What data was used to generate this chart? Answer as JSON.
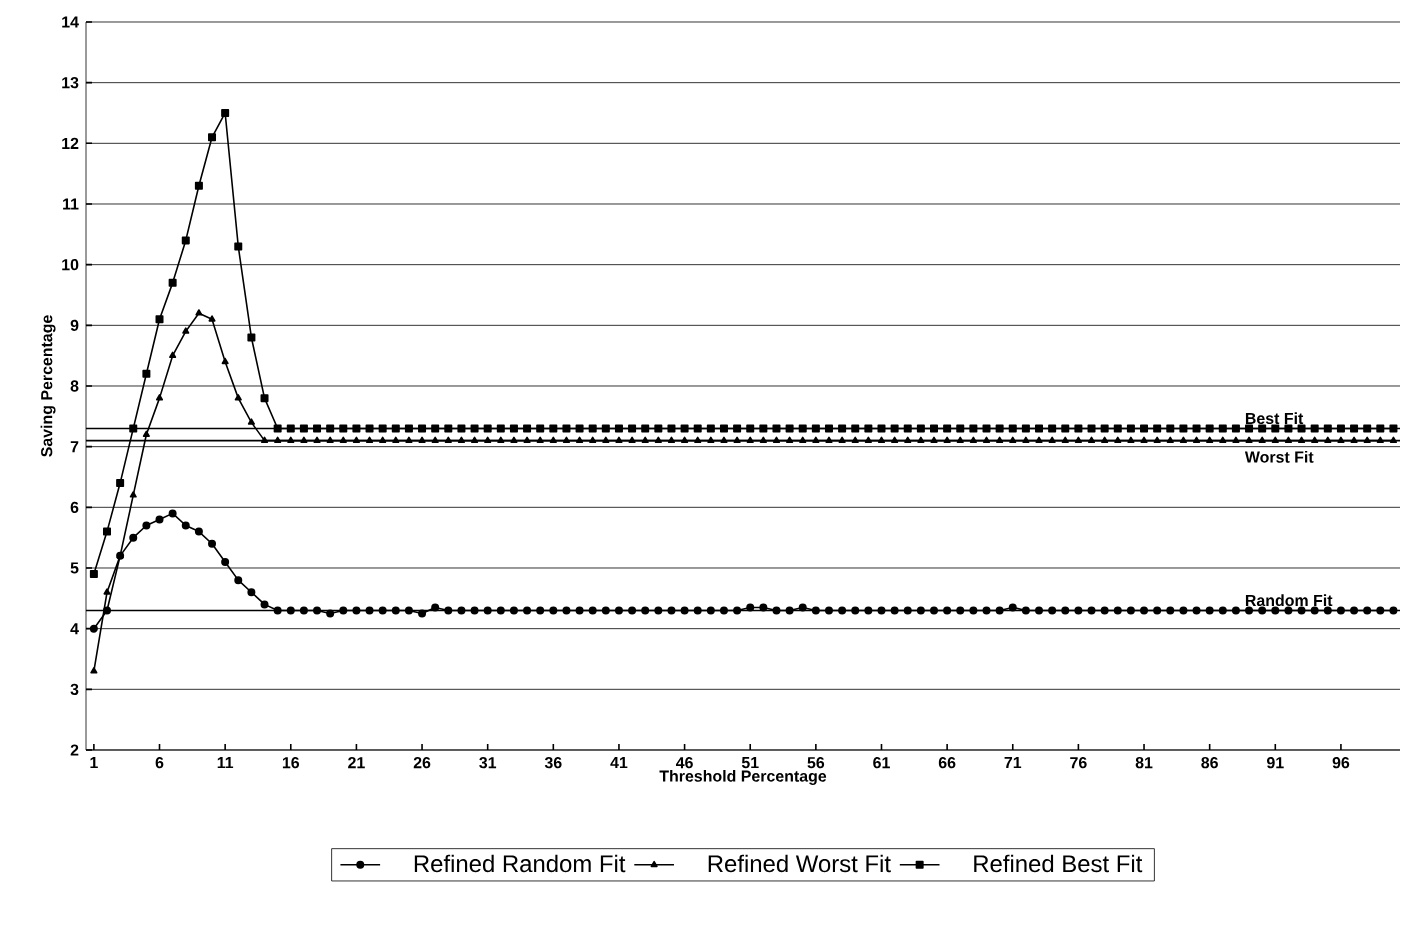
{
  "chart_data": {
    "type": "line",
    "xlabel": "Threshold Percentage",
    "ylabel": "Saving Percentage",
    "categories": [
      "1",
      null,
      null,
      null,
      null,
      "6",
      null,
      null,
      null,
      null,
      "11",
      null,
      null,
      null,
      null,
      "16",
      null,
      null,
      null,
      null,
      "21",
      null,
      null,
      null,
      null,
      "26",
      null,
      null,
      null,
      null,
      "31",
      null,
      null,
      null,
      null,
      "36",
      null,
      null,
      null,
      null,
      "41",
      null,
      null,
      null,
      null,
      "46",
      null,
      null,
      null,
      null,
      "51",
      null,
      null,
      null,
      null,
      "56",
      null,
      null,
      null,
      null,
      "61",
      null,
      null,
      null,
      null,
      "66",
      null,
      null,
      null,
      null,
      "71",
      null,
      null,
      null,
      null,
      "76",
      null,
      null,
      null,
      null,
      "81",
      null,
      null,
      null,
      null,
      "86",
      null,
      null,
      null,
      null,
      "91",
      null,
      null,
      null,
      null,
      "96",
      null,
      null,
      null,
      null
    ],
    "ylim": [
      2,
      14
    ],
    "yticks": [
      2,
      3,
      4,
      5,
      6,
      7,
      8,
      9,
      10,
      11,
      12,
      13,
      14
    ],
    "grid": "y",
    "legend": "bottom",
    "line_style": "solid",
    "series": [
      {
        "name": "Refined Random Fit",
        "color": "#000000",
        "marker": "circle",
        "values": [
          4.0,
          4.3,
          5.2,
          5.5,
          5.7,
          5.8,
          5.9,
          5.7,
          5.6,
          5.4,
          5.1,
          4.8,
          4.6,
          4.4,
          4.3,
          4.3,
          4.3,
          4.3,
          4.25,
          4.3,
          4.3,
          4.3,
          4.3,
          4.3,
          4.3,
          4.25,
          4.35,
          4.3,
          4.3,
          4.3,
          4.3,
          4.3,
          4.3,
          4.3,
          4.3,
          4.3,
          4.3,
          4.3,
          4.3,
          4.3,
          4.3,
          4.3,
          4.3,
          4.3,
          4.3,
          4.3,
          4.3,
          4.3,
          4.3,
          4.3,
          4.35,
          4.35,
          4.3,
          4.3,
          4.35,
          4.3,
          4.3,
          4.3,
          4.3,
          4.3,
          4.3,
          4.3,
          4.3,
          4.3,
          4.3,
          4.3,
          4.3,
          4.3,
          4.3,
          4.3,
          4.35,
          4.3,
          4.3,
          4.3,
          4.3,
          4.3,
          4.3,
          4.3,
          4.3,
          4.3,
          4.3,
          4.3,
          4.3,
          4.3,
          4.3,
          4.3,
          4.3,
          4.3,
          4.3,
          4.3,
          4.3,
          4.3,
          4.3,
          4.3,
          4.3,
          4.3,
          4.3,
          4.3,
          4.3,
          4.3
        ]
      },
      {
        "name": "Refined Worst Fit",
        "color": "#000000",
        "marker": "triangle",
        "values": [
          3.3,
          4.6,
          5.2,
          6.2,
          7.2,
          7.8,
          8.5,
          8.9,
          9.2,
          9.1,
          8.4,
          7.8,
          7.4,
          7.1,
          7.1,
          7.1,
          7.1,
          7.1,
          7.1,
          7.1,
          7.1,
          7.1,
          7.1,
          7.1,
          7.1,
          7.1,
          7.1,
          7.1,
          7.1,
          7.1,
          7.1,
          7.1,
          7.1,
          7.1,
          7.1,
          7.1,
          7.1,
          7.1,
          7.1,
          7.1,
          7.1,
          7.1,
          7.1,
          7.1,
          7.1,
          7.1,
          7.1,
          7.1,
          7.1,
          7.1,
          7.1,
          7.1,
          7.1,
          7.1,
          7.1,
          7.1,
          7.1,
          7.1,
          7.1,
          7.1,
          7.1,
          7.1,
          7.1,
          7.1,
          7.1,
          7.1,
          7.1,
          7.1,
          7.1,
          7.1,
          7.1,
          7.1,
          7.1,
          7.1,
          7.1,
          7.1,
          7.1,
          7.1,
          7.1,
          7.1,
          7.1,
          7.1,
          7.1,
          7.1,
          7.1,
          7.1,
          7.1,
          7.1,
          7.1,
          7.1,
          7.1,
          7.1,
          7.1,
          7.1,
          7.1,
          7.1,
          7.1,
          7.1,
          7.1,
          7.1
        ]
      },
      {
        "name": "Refined Best Fit",
        "color": "#000000",
        "marker": "square",
        "values": [
          4.9,
          5.6,
          6.4,
          7.3,
          8.2,
          9.1,
          9.7,
          10.4,
          11.3,
          12.1,
          12.5,
          10.3,
          8.8,
          7.8,
          7.3,
          7.3,
          7.3,
          7.3,
          7.3,
          7.3,
          7.3,
          7.3,
          7.3,
          7.3,
          7.3,
          7.3,
          7.3,
          7.3,
          7.3,
          7.3,
          7.3,
          7.3,
          7.3,
          7.3,
          7.3,
          7.3,
          7.3,
          7.3,
          7.3,
          7.3,
          7.3,
          7.3,
          7.3,
          7.3,
          7.3,
          7.3,
          7.3,
          7.3,
          7.3,
          7.3,
          7.3,
          7.3,
          7.3,
          7.3,
          7.3,
          7.3,
          7.3,
          7.3,
          7.3,
          7.3,
          7.3,
          7.3,
          7.3,
          7.3,
          7.3,
          7.3,
          7.3,
          7.3,
          7.3,
          7.3,
          7.3,
          7.3,
          7.3,
          7.3,
          7.3,
          7.3,
          7.3,
          7.3,
          7.3,
          7.3,
          7.3,
          7.3,
          7.3,
          7.3,
          7.3,
          7.3,
          7.3,
          7.3,
          7.3,
          7.3,
          7.3,
          7.3,
          7.3,
          7.3,
          7.3,
          7.3,
          7.3,
          7.3,
          7.3,
          7.3
        ]
      }
    ],
    "ref_lines": [
      {
        "axis": "y",
        "value": 7.3,
        "label": "Best Fit",
        "color": "#000000"
      },
      {
        "axis": "y",
        "value": 7.1,
        "label": "Worst Fit",
        "color": "#000000"
      },
      {
        "axis": "y",
        "value": 4.3,
        "label": "Random Fit",
        "color": "#000000"
      }
    ]
  }
}
